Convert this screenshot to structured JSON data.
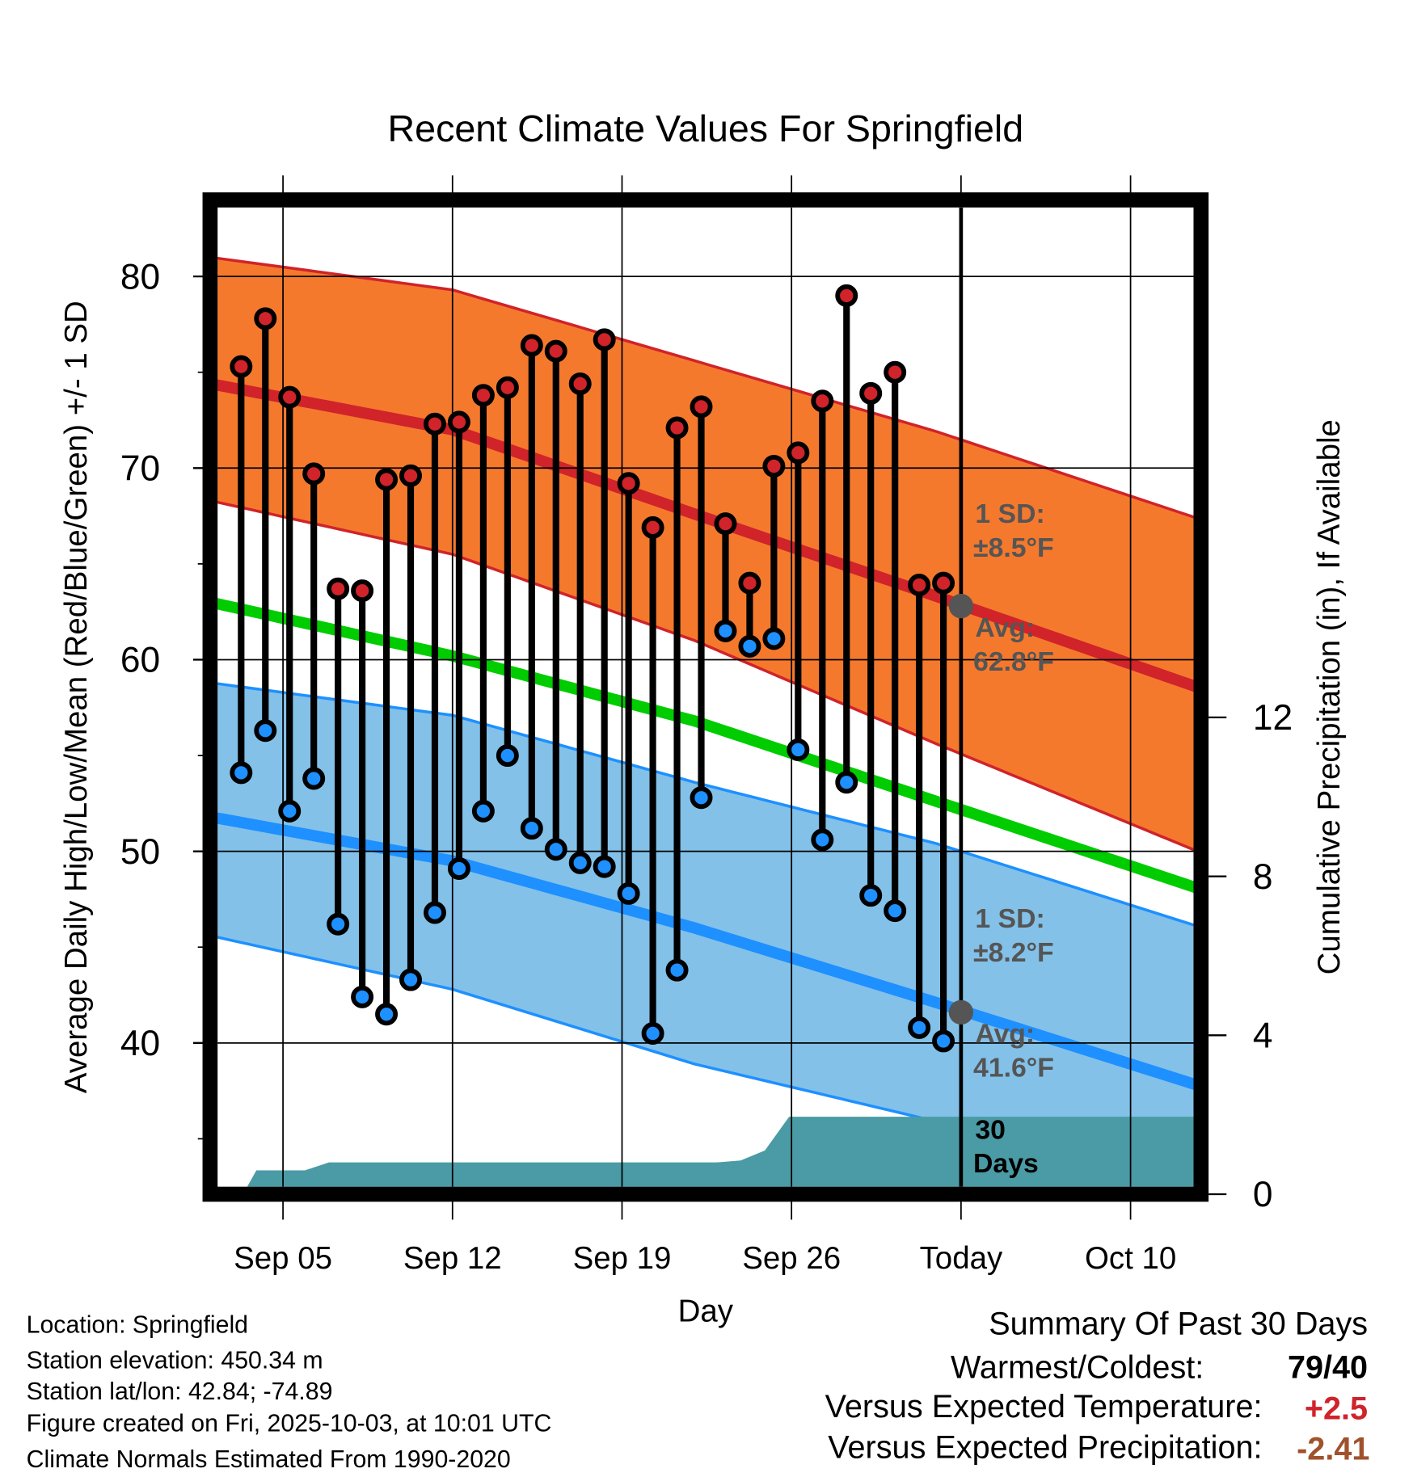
{
  "chart_data": {
    "type": "line",
    "title": "Recent Climate Values For Springfield",
    "xlabel": "Day",
    "ylabel": "Average Daily High/Low/Mean (Red/Blue/Green) +/- 1 SD",
    "y2label": "Cumulative Precipitation (in), If Available",
    "ylim": [
      32.5,
      83.6
    ],
    "y2lim": [
      0,
      24.8
    ],
    "xlim_days_from_sep01": [
      1.3,
      41.6
    ],
    "yticks": [
      40,
      50,
      60,
      70,
      80
    ],
    "yminor_ticks": [
      35,
      45,
      55,
      65,
      75
    ],
    "y2ticks": [
      0,
      4,
      8,
      12
    ],
    "xticks": [
      {
        "day": 4,
        "label": "Sep 05"
      },
      {
        "day": 11,
        "label": "Sep 12"
      },
      {
        "day": 18,
        "label": "Sep 19"
      },
      {
        "day": 25,
        "label": "Sep 26"
      },
      {
        "day": 32,
        "label": "Today"
      },
      {
        "day": 39,
        "label": "Oct 10"
      }
    ],
    "grid": true,
    "today_day": 32,
    "observations": {
      "days_from_sep01": [
        2,
        3,
        4,
        5,
        6,
        7,
        8,
        9,
        10,
        11,
        12,
        13,
        14,
        15,
        16,
        17,
        18,
        19,
        20,
        21,
        22,
        23,
        24,
        25,
        26,
        27,
        28,
        29,
        30,
        31
      ],
      "high": [
        75.3,
        77.8,
        73.7,
        69.7,
        63.7,
        63.6,
        69.4,
        69.6,
        72.3,
        72.4,
        73.8,
        74.2,
        76.4,
        76.1,
        74.4,
        76.7,
        69.2,
        66.9,
        72.1,
        73.2,
        67.1,
        64.0,
        70.1,
        70.8,
        73.5,
        79.0,
        73.9,
        75.0,
        63.9,
        64.0
      ],
      "low": [
        54.1,
        56.3,
        52.1,
        53.8,
        46.2,
        42.4,
        41.5,
        43.3,
        46.8,
        49.1,
        52.1,
        55.0,
        51.2,
        50.1,
        49.4,
        49.2,
        47.8,
        40.5,
        43.8,
        52.8,
        61.5,
        60.7,
        61.1,
        55.3,
        50.6,
        53.6,
        47.7,
        46.9,
        40.8,
        40.1
      ]
    },
    "normals": {
      "days_from_sep01": [
        1,
        11,
        21,
        31,
        41
      ],
      "high_mean": [
        74.4,
        72.0,
        67.6,
        63.3,
        58.9
      ],
      "high_upper": [
        81.0,
        79.3,
        75.6,
        71.9,
        67.7
      ],
      "high_lower": [
        68.3,
        65.5,
        61.0,
        55.6,
        50.4
      ],
      "overall_mean": [
        63.0,
        60.2,
        56.8,
        52.6,
        48.4
      ],
      "low_mean": [
        51.8,
        49.5,
        46.0,
        42.1,
        38.1
      ],
      "low_upper": [
        58.8,
        57.1,
        53.6,
        50.4,
        46.4
      ],
      "low_lower": [
        45.6,
        42.8,
        38.9,
        35.9,
        33.5
      ]
    },
    "precipitation": {
      "days_from_sep01": [
        2.35,
        2.9,
        3.4,
        4.9,
        5.9,
        21.9,
        22.9,
        23.9,
        24.9,
        41.6
      ],
      "cumulative_in": [
        0.0,
        0.6,
        0.6,
        0.6,
        0.8,
        0.8,
        0.85,
        1.1,
        1.95,
        1.95
      ]
    },
    "annotations": {
      "high_sd": {
        "line1": "1 SD:",
        "line2": "±8.5°F"
      },
      "high_avg": {
        "line1": "Avg:",
        "line2": "62.8°F",
        "value": 62.8
      },
      "low_sd": {
        "line1": "1 SD:",
        "line2": "±8.2°F"
      },
      "low_avg": {
        "line1": "Avg:",
        "line2": "41.6°F",
        "value": 41.6
      },
      "precip_days": {
        "line1": "30",
        "line2": "Days"
      }
    },
    "colors": {
      "high_band": "#f5792d",
      "high_line": "#d0232a",
      "low_band": "#83c1e8",
      "low_line": "#1e90ff",
      "mean_line": "#00cc00",
      "precip": "#4a9ba5",
      "annotation": "#555555",
      "high_dot": "#d0232a",
      "low_dot": "#1e90ff"
    }
  },
  "info": {
    "location": "Location: Springfield",
    "elevation": "Station elevation: 450.34 m",
    "latlon": "Station lat/lon: 42.84; -74.89",
    "created": "Figure created on Fri, 2025-10-03, at 10:01 UTC",
    "normals": "Climate Normals Estimated From 1990-2020"
  },
  "summary": {
    "title": "Summary Of Past 30 Days",
    "warmest_label": "Warmest/Coldest:",
    "warmest_value": "79/40",
    "temp_label": "Versus Expected Temperature:",
    "temp_value": "+2.5",
    "temp_color": "#d0232a",
    "precip_label": "Versus Expected Precipitation:",
    "precip_value": "-2.41",
    "precip_color": "#a0522d"
  }
}
